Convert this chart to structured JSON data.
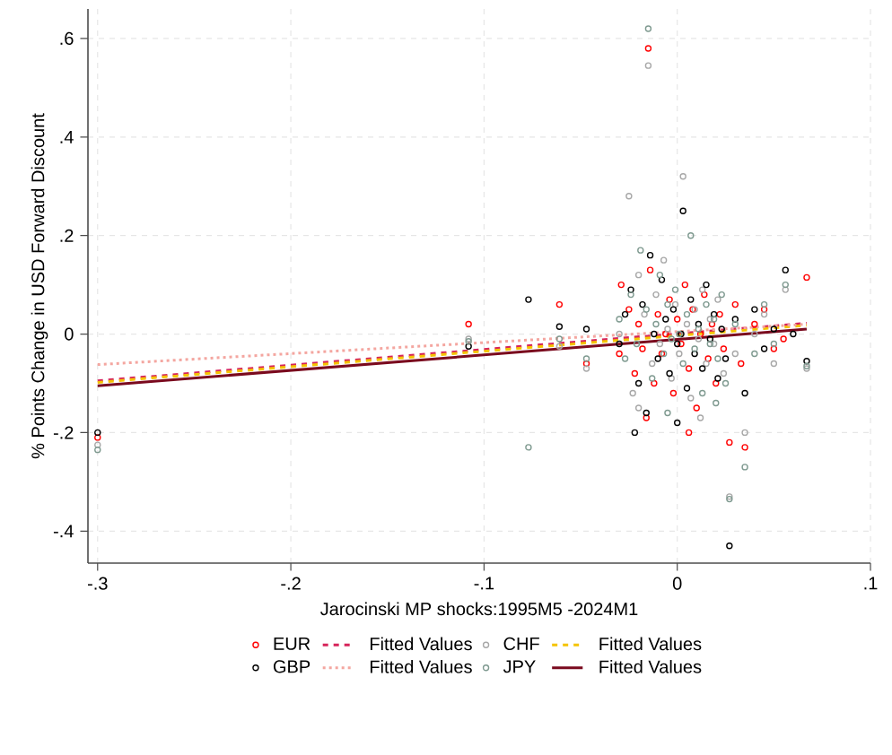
{
  "chart_data": {
    "type": "scatter",
    "xlabel": "Jarocinski MP shocks:1995M5 -2024M1",
    "ylabel": "% Points Change in USD  Forward Discount",
    "xlim": [
      -0.305,
      0.1
    ],
    "ylim": [
      -0.465,
      0.66
    ],
    "xticks": [
      {
        "value": -0.3,
        "label": "-.3"
      },
      {
        "value": -0.2,
        "label": "-.2"
      },
      {
        "value": -0.1,
        "label": "-.1"
      },
      0,
      {
        "value": 0.1,
        "label": ".1"
      }
    ],
    "yticks": [
      {
        "value": -0.4,
        "label": "-.4"
      },
      {
        "value": -0.2,
        "label": "-.2"
      },
      0,
      {
        "value": 0.2,
        "label": ".2"
      },
      {
        "value": 0.4,
        "label": ".4"
      },
      {
        "value": 0.6,
        "label": ".6"
      }
    ],
    "grid": true,
    "legend": "bottom",
    "series": [
      {
        "name": "EUR",
        "marker": "circle",
        "color": "#ff0000",
        "x": [
          -0.3,
          -0.108,
          -0.061,
          -0.047,
          -0.029,
          -0.025,
          -0.022,
          -0.02,
          -0.018,
          -0.015,
          -0.014,
          -0.012,
          -0.01,
          -0.008,
          -0.006,
          -0.004,
          -0.002,
          0.0,
          0.002,
          0.004,
          0.006,
          0.008,
          0.01,
          0.012,
          0.014,
          0.016,
          0.018,
          0.02,
          0.022,
          0.024,
          0.027,
          0.03,
          0.033,
          0.035,
          0.04,
          0.045,
          0.05,
          0.055,
          0.067,
          -0.03,
          -0.016,
          0.006
        ],
        "values": [
          -0.21,
          0.02,
          0.06,
          -0.06,
          0.1,
          0.05,
          -0.08,
          0.02,
          -0.03,
          0.58,
          0.13,
          -0.1,
          0.04,
          -0.04,
          0.0,
          0.07,
          -0.12,
          0.03,
          -0.02,
          0.1,
          -0.07,
          0.05,
          -0.15,
          0.0,
          0.08,
          -0.05,
          0.02,
          -0.1,
          0.04,
          -0.03,
          -0.22,
          0.06,
          -0.06,
          -0.23,
          0.02,
          0.05,
          -0.03,
          -0.01,
          0.115,
          -0.04,
          -0.17,
          -0.2
        ]
      },
      {
        "name": "Fitted Values",
        "type": "line",
        "color": "#d6245a",
        "line_style": "dashed",
        "x": [
          -0.3,
          0.067
        ],
        "values": [
          -0.095,
          0.022
        ]
      },
      {
        "name": "CHF",
        "marker": "circle",
        "color": "#a8a8a8",
        "x": [
          -0.3,
          -0.108,
          -0.061,
          -0.047,
          -0.03,
          -0.025,
          -0.023,
          -0.02,
          -0.017,
          -0.015,
          -0.013,
          -0.011,
          -0.009,
          -0.007,
          -0.005,
          -0.003,
          -0.001,
          0.001,
          0.003,
          0.005,
          0.007,
          0.009,
          0.011,
          0.013,
          0.015,
          0.017,
          0.019,
          0.021,
          0.024,
          0.027,
          0.03,
          0.035,
          0.04,
          0.045,
          0.05,
          0.056,
          0.067,
          -0.02,
          0.012
        ],
        "values": [
          -0.225,
          -0.01,
          -0.025,
          -0.07,
          0.0,
          0.28,
          -0.12,
          0.12,
          0.04,
          0.545,
          -0.06,
          0.08,
          -0.02,
          0.15,
          0.01,
          -0.09,
          0.06,
          -0.04,
          0.32,
          0.02,
          -0.13,
          0.05,
          -0.01,
          0.09,
          -0.06,
          0.03,
          -0.02,
          0.07,
          -0.08,
          -0.33,
          -0.04,
          -0.2,
          0.0,
          0.04,
          -0.06,
          0.09,
          -0.07,
          -0.15,
          -0.17
        ]
      },
      {
        "name": "Fitted Values",
        "type": "line",
        "color": "#f5c400",
        "line_style": "dashed",
        "x": [
          -0.3,
          0.067
        ],
        "values": [
          -0.098,
          0.018
        ]
      },
      {
        "name": "GBP",
        "marker": "circle",
        "color": "#000000",
        "x": [
          -0.3,
          -0.108,
          -0.077,
          -0.061,
          -0.047,
          -0.03,
          -0.027,
          -0.024,
          -0.02,
          -0.018,
          -0.016,
          -0.014,
          -0.012,
          -0.01,
          -0.008,
          -0.006,
          -0.004,
          -0.002,
          0.0,
          0.002,
          0.003,
          0.005,
          0.007,
          0.009,
          0.011,
          0.013,
          0.015,
          0.017,
          0.019,
          0.021,
          0.023,
          0.025,
          0.027,
          0.03,
          0.035,
          0.04,
          0.045,
          0.05,
          0.056,
          0.06,
          0.067,
          -0.022,
          0.0
        ],
        "values": [
          -0.2,
          -0.025,
          0.07,
          0.015,
          0.01,
          -0.02,
          0.04,
          0.09,
          -0.1,
          0.06,
          -0.16,
          0.16,
          0.0,
          -0.05,
          0.11,
          0.03,
          -0.08,
          0.05,
          -0.02,
          0.0,
          0.25,
          -0.11,
          0.07,
          -0.04,
          0.02,
          -0.07,
          0.1,
          -0.01,
          0.04,
          -0.09,
          0.01,
          -0.05,
          -0.43,
          0.03,
          -0.12,
          0.05,
          -0.03,
          0.01,
          0.13,
          0.0,
          -0.055,
          -0.2,
          -0.18
        ]
      },
      {
        "name": "Fitted Values",
        "type": "line",
        "color": "#f4a6a0",
        "line_style": "dotted",
        "x": [
          -0.3,
          0.067
        ],
        "values": [
          -0.062,
          0.02
        ]
      },
      {
        "name": "JPY",
        "marker": "circle",
        "color": "#7f9a90",
        "x": [
          -0.3,
          -0.108,
          -0.077,
          -0.061,
          -0.047,
          -0.03,
          -0.027,
          -0.024,
          -0.021,
          -0.019,
          -0.016,
          -0.015,
          -0.013,
          -0.011,
          -0.009,
          -0.007,
          -0.005,
          -0.003,
          -0.001,
          0.001,
          0.003,
          0.005,
          0.007,
          0.009,
          0.011,
          0.013,
          0.015,
          0.017,
          0.019,
          0.021,
          0.023,
          0.025,
          0.027,
          0.03,
          0.035,
          0.04,
          0.045,
          0.05,
          0.056,
          0.067,
          -0.005,
          0.02
        ],
        "values": [
          -0.235,
          -0.015,
          -0.23,
          -0.01,
          -0.05,
          0.03,
          -0.05,
          0.08,
          -0.02,
          0.17,
          0.05,
          0.62,
          -0.09,
          0.02,
          0.12,
          -0.04,
          0.06,
          -0.01,
          0.09,
          0.0,
          -0.06,
          0.04,
          0.2,
          -0.03,
          0.01,
          -0.12,
          0.06,
          -0.02,
          0.03,
          -0.05,
          0.08,
          -0.1,
          -0.335,
          0.02,
          -0.27,
          -0.04,
          0.06,
          -0.02,
          0.1,
          -0.065,
          -0.16,
          -0.14
        ]
      },
      {
        "name": "Fitted Values",
        "type": "line",
        "color": "#7a0a1e",
        "line_style": "solid",
        "x": [
          -0.3,
          0.067
        ],
        "values": [
          -0.105,
          0.01
        ]
      }
    ]
  }
}
